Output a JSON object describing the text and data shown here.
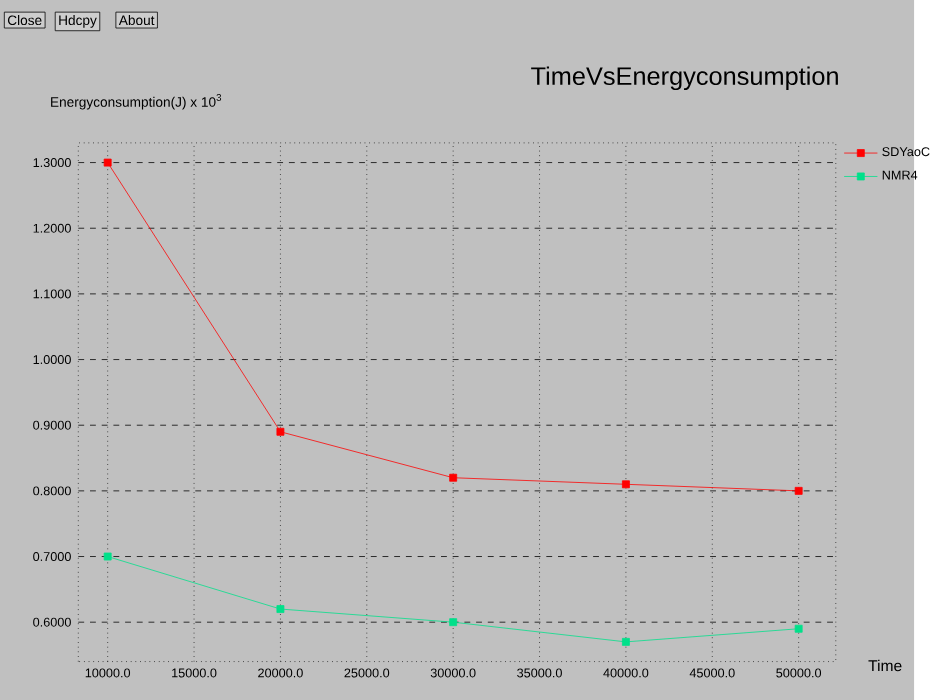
{
  "chart_data": {
    "type": "line",
    "title": "TimeVsEnergyconsumption",
    "ylabel": "Energyconsumption(J) x 10$^{3}$",
    "xlabel": "Time",
    "annotations": [
      "Close",
      "Hdcpy",
      "About"
    ],
    "x": [
      10000,
      20000,
      30000,
      40000,
      50000
    ],
    "series": [
      {
        "name": "SDYaoC",
        "color": "#ff0000",
        "values": [
          1.3,
          0.89,
          0.82,
          0.81,
          0.8
        ]
      },
      {
        "name": "NMR4",
        "color": "#00e08a",
        "values": [
          0.7,
          0.62,
          0.6,
          0.57,
          0.59
        ]
      }
    ],
    "xlim": [
      8300,
      52150
    ],
    "ylim": [
      0.54,
      1.33
    ],
    "xticks": [
      {
        "value": 10000,
        "label": "10000.0"
      },
      {
        "value": 15000,
        "label": "15000.0"
      },
      {
        "value": 20000,
        "label": "20000.0"
      },
      {
        "value": 25000,
        "label": "25000.0"
      },
      {
        "value": 30000,
        "label": "30000.0"
      },
      {
        "value": 35000,
        "label": "35000.0"
      },
      {
        "value": 40000,
        "label": "40000.0"
      },
      {
        "value": 45000,
        "label": "45000.0"
      },
      {
        "value": 50000,
        "label": "50000.0"
      }
    ],
    "yticks": [
      {
        "value": 0.6,
        "label": "0.6000"
      },
      {
        "value": 0.7,
        "label": "0.7000"
      },
      {
        "value": 0.8,
        "label": "0.8000"
      },
      {
        "value": 0.9,
        "label": "0.9000"
      },
      {
        "value": 1.0,
        "label": "1.0000"
      },
      {
        "value": 1.1,
        "label": "1.1000"
      },
      {
        "value": 1.2,
        "label": "1.2000"
      },
      {
        "value": 1.3,
        "label": "1.3000"
      }
    ],
    "grid": true,
    "legend": "right",
    "marker": "square",
    "line_style": "solid"
  }
}
